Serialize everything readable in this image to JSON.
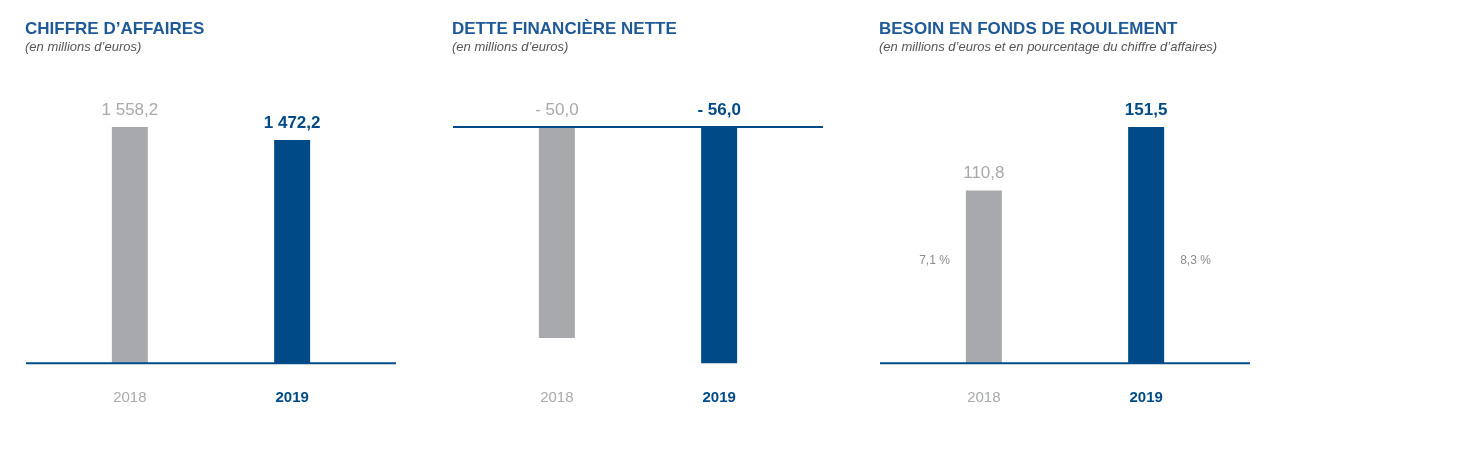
{
  "chart_data": [
    {
      "type": "bar",
      "title": "CHIFFRE D’AFFAIRES",
      "subtitle": "(en millions d’euros)",
      "categories": [
        "2018",
        "2019"
      ],
      "values": [
        1558.2,
        1472.2
      ],
      "colors": [
        "#a7a9ac",
        "#004b87"
      ],
      "value_labels": [
        "1 558,2",
        "1 472,2"
      ]
    },
    {
      "type": "bar",
      "title": "DETTE FINANCIÈRE NETTE",
      "subtitle": "(en millions d’euros)",
      "categories": [
        "2018",
        "2019"
      ],
      "values": [
        -50.0,
        -56.0
      ],
      "colors": [
        "#a7a9ac",
        "#004b87"
      ],
      "value_labels": [
        "- 50,0",
        "- 56,0"
      ]
    },
    {
      "type": "bar",
      "title": "BESOIN EN FONDS DE ROULEMENT",
      "subtitle": "(en millions d’euros et en pourcentage du chiffre d’affaires)",
      "categories": [
        "2018",
        "2019"
      ],
      "values": [
        110.8,
        151.5
      ],
      "colors": [
        "#a7a9ac",
        "#004b87"
      ],
      "value_labels": [
        "110,8",
        "151,5"
      ],
      "annotations": [
        "7,1 %",
        "8,3 %"
      ]
    }
  ]
}
